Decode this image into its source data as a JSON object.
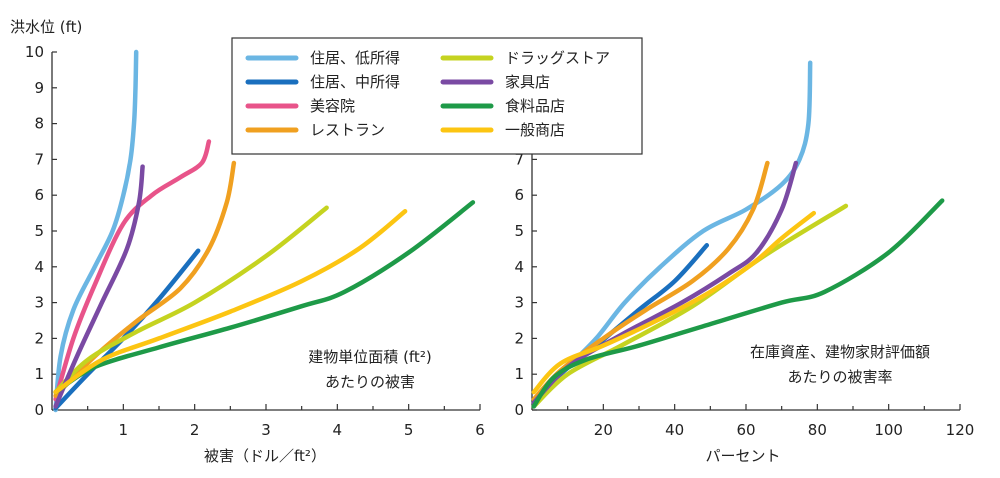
{
  "y_title": "洪水位 (ft)",
  "legend": {
    "entries": [
      {
        "key": "s1",
        "label": "住居、低所得",
        "color": "#6bb6e3"
      },
      {
        "key": "s2",
        "label": "住居、中所得",
        "color": "#1a6fbe"
      },
      {
        "key": "s3",
        "label": "美容院",
        "color": "#e8548a"
      },
      {
        "key": "s4",
        "label": "レストラン",
        "color": "#f0a020"
      },
      {
        "key": "s5",
        "label": "ドラッグストア",
        "color": "#c5d320"
      },
      {
        "key": "s6",
        "label": "家具店",
        "color": "#7a4aa3"
      },
      {
        "key": "s7",
        "label": "食料品店",
        "color": "#1e9a48"
      },
      {
        "key": "s8",
        "label": "一般商店",
        "color": "#fcc512"
      }
    ]
  },
  "chart_data": [
    {
      "type": "line",
      "xlabel": "被害（ドル／ft²）",
      "ylabel": "洪水位 (ft)",
      "annotation": [
        "建物単位面積 (ft²)",
        "あたりの被害"
      ],
      "xlim": [
        0,
        6
      ],
      "ylim": [
        0,
        10
      ],
      "xticks": [
        1,
        2,
        3,
        4,
        5,
        6
      ],
      "yticks": [
        0,
        1,
        2,
        3,
        4,
        5,
        6,
        7,
        8,
        9,
        10
      ],
      "series": [
        {
          "key": "s1",
          "name": "住居、低所得",
          "points": [
            [
              0.05,
              0
            ],
            [
              0.12,
              1.5
            ],
            [
              0.3,
              2.8
            ],
            [
              0.6,
              4
            ],
            [
              0.85,
              5
            ],
            [
              1.0,
              6
            ],
            [
              1.1,
              7
            ],
            [
              1.15,
              8
            ],
            [
              1.17,
              9
            ],
            [
              1.18,
              10
            ]
          ]
        },
        {
          "key": "s2",
          "name": "住居、中所得",
          "points": [
            [
              0.05,
              0.05
            ],
            [
              0.5,
              1
            ],
            [
              1.0,
              2
            ],
            [
              1.5,
              3.1
            ],
            [
              2.05,
              4.45
            ]
          ]
        },
        {
          "key": "s3",
          "name": "美容院",
          "points": [
            [
              0.05,
              0.3
            ],
            [
              0.3,
              2
            ],
            [
              0.6,
              3.5
            ],
            [
              1.0,
              5.2
            ],
            [
              1.4,
              6
            ],
            [
              1.8,
              6.5
            ],
            [
              2.1,
              6.9
            ],
            [
              2.2,
              7.5
            ]
          ]
        },
        {
          "key": "s4",
          "name": "レストラン",
          "points": [
            [
              0.05,
              0.4
            ],
            [
              0.6,
              1.5
            ],
            [
              1.2,
              2.5
            ],
            [
              1.8,
              3.4
            ],
            [
              2.2,
              4.5
            ],
            [
              2.45,
              5.8
            ],
            [
              2.55,
              6.9
            ]
          ]
        },
        {
          "key": "s5",
          "name": "ドラッグストア",
          "points": [
            [
              0.05,
              0.5
            ],
            [
              0.5,
              1.4
            ],
            [
              1.2,
              2.2
            ],
            [
              2.0,
              3.0
            ],
            [
              3.0,
              4.3
            ],
            [
              3.85,
              5.65
            ]
          ]
        },
        {
          "key": "s6",
          "name": "家具店",
          "points": [
            [
              0.05,
              0.1
            ],
            [
              0.35,
              1.5
            ],
            [
              0.7,
              3
            ],
            [
              1.05,
              4.5
            ],
            [
              1.22,
              5.8
            ],
            [
              1.27,
              6.8
            ]
          ]
        },
        {
          "key": "s7",
          "name": "食料品店",
          "points": [
            [
              0.05,
              0.5
            ],
            [
              0.6,
              1.2
            ],
            [
              1.5,
              1.75
            ],
            [
              2.5,
              2.3
            ],
            [
              3.5,
              2.9
            ],
            [
              4.1,
              3.3
            ],
            [
              5.0,
              4.4
            ],
            [
              5.9,
              5.8
            ]
          ]
        },
        {
          "key": "s8",
          "name": "一般商店",
          "points": [
            [
              0.05,
              0.5
            ],
            [
              0.7,
              1.4
            ],
            [
              1.5,
              2.0
            ],
            [
              2.5,
              2.75
            ],
            [
              3.5,
              3.6
            ],
            [
              4.3,
              4.5
            ],
            [
              4.95,
              5.55
            ]
          ]
        }
      ]
    },
    {
      "type": "line",
      "xlabel": "パーセント",
      "annotation": [
        "在庫資産、建物家財評価額",
        "あたりの被害率"
      ],
      "xlim": [
        0,
        120
      ],
      "ylim": [
        0,
        10
      ],
      "xticks": [
        20,
        40,
        60,
        80,
        100,
        120
      ],
      "yticks": [
        0,
        1,
        2,
        3,
        4,
        5,
        6,
        7
      ],
      "series": [
        {
          "key": "s1",
          "name": "住居、低所得",
          "points": [
            [
              0.5,
              0.1
            ],
            [
              4,
              0.6
            ],
            [
              10,
              1.2
            ],
            [
              18,
              2
            ],
            [
              26,
              3
            ],
            [
              36,
              4
            ],
            [
              48,
              5
            ],
            [
              60,
              5.6
            ],
            [
              70,
              6.3
            ],
            [
              75,
              7
            ],
            [
              77.5,
              8
            ],
            [
              78,
              9.7
            ]
          ]
        },
        {
          "key": "s2",
          "name": "住居、中所得",
          "points": [
            [
              0.5,
              0.1
            ],
            [
              8,
              1
            ],
            [
              18,
              1.8
            ],
            [
              30,
              2.8
            ],
            [
              40,
              3.6
            ],
            [
              49,
              4.6
            ]
          ]
        },
        {
          "key": "s3",
          "name": "美容院",
          "points": []
        },
        {
          "key": "s4",
          "name": "レストラン",
          "points": [
            [
              0.5,
              0.3
            ],
            [
              8,
              1.1
            ],
            [
              20,
              2
            ],
            [
              32,
              2.8
            ],
            [
              45,
              3.6
            ],
            [
              55,
              4.5
            ],
            [
              62,
              5.6
            ],
            [
              66,
              6.9
            ]
          ]
        },
        {
          "key": "s5",
          "name": "ドラッグストア",
          "points": [
            [
              0.5,
              0.1
            ],
            [
              10,
              1
            ],
            [
              25,
              1.8
            ],
            [
              45,
              2.9
            ],
            [
              65,
              4.3
            ],
            [
              88,
              5.7
            ]
          ]
        },
        {
          "key": "s6",
          "name": "家具店",
          "points": [
            [
              0.5,
              0.2
            ],
            [
              10,
              1.2
            ],
            [
              25,
              2.1
            ],
            [
              42,
              3
            ],
            [
              55,
              3.8
            ],
            [
              63,
              4.4
            ],
            [
              70,
              5.6
            ],
            [
              74,
              6.9
            ]
          ]
        },
        {
          "key": "s7",
          "name": "食料品店",
          "points": [
            [
              0.5,
              0.1
            ],
            [
              6,
              0.9
            ],
            [
              15,
              1.4
            ],
            [
              30,
              1.8
            ],
            [
              50,
              2.4
            ],
            [
              70,
              3
            ],
            [
              82,
              3.3
            ],
            [
              100,
              4.4
            ],
            [
              115,
              5.85
            ]
          ]
        },
        {
          "key": "s8",
          "name": "一般商店",
          "points": [
            [
              0.5,
              0.5
            ],
            [
              8,
              1.3
            ],
            [
              20,
              1.8
            ],
            [
              35,
              2.5
            ],
            [
              50,
              3.3
            ],
            [
              62,
              4.1
            ],
            [
              70,
              4.8
            ],
            [
              79,
              5.5
            ]
          ]
        }
      ]
    }
  ]
}
